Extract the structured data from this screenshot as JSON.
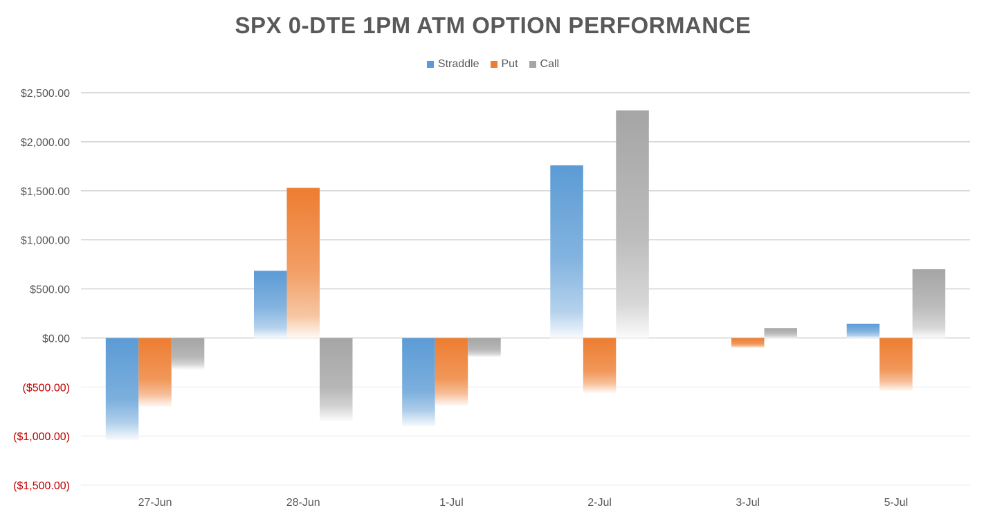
{
  "chart_data": {
    "type": "bar",
    "title": "SPX 0-DTE 1PM ATM OPTION PERFORMANCE",
    "xlabel": "",
    "ylabel": "",
    "categories": [
      "27-Jun",
      "28-Jun",
      "1-Jul",
      "2-Jul",
      "3-Jul",
      "5-Jul"
    ],
    "series": [
      {
        "name": "Straddle",
        "color": "#5b9bd5",
        "values": [
          -1040,
          685,
          -900,
          1760,
          0,
          145
        ]
      },
      {
        "name": "Put",
        "color": "#ed7d31",
        "values": [
          -700,
          1530,
          -690,
          -560,
          -100,
          -540
        ]
      },
      {
        "name": "Call",
        "color": "#a5a5a5",
        "values": [
          -320,
          -845,
          -195,
          2320,
          100,
          700
        ]
      }
    ],
    "ylim": [
      -1500,
      2500
    ],
    "y_ticks": [
      2500,
      2000,
      1500,
      1000,
      500,
      0,
      -500,
      -1000,
      -1500
    ],
    "y_tick_labels": [
      "$2,500.00",
      "$2,000.00",
      "$1,500.00",
      "$1,000.00",
      "$500.00",
      "$0.00",
      "($500.00)",
      "($1,000.00)",
      "($1,500.00)"
    ],
    "negative_label_color": "#c00000",
    "grid": true,
    "legend_position": "top-center"
  }
}
